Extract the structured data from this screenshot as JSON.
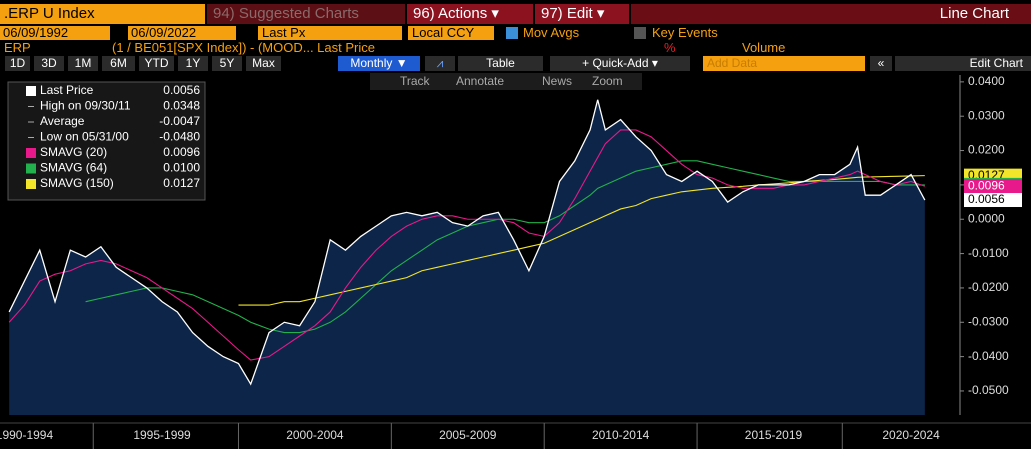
{
  "header": {
    "security": ".ERP U Index",
    "suggested": "94) Suggested Charts",
    "actions": "96) Actions ▾",
    "edit": "97) Edit ▾",
    "view": "Line Chart"
  },
  "controls": {
    "start_date": "06/09/1992",
    "end_date": "06/09/2022",
    "price_field": "Last Px",
    "currency": "Local CCY",
    "mov_avgs": "Mov Avgs",
    "key_events": "Key Events"
  },
  "formula": {
    "ticker": "ERP",
    "expression": "(1 / BE051[SPX Index]) - (MOOD... Last Price",
    "unit": "%",
    "volume": "Volume"
  },
  "periods": [
    "1D",
    "3D",
    "1M",
    "6M",
    "YTD",
    "1Y",
    "5Y",
    "Max"
  ],
  "frequency": "Monthly ▼",
  "table": "Table",
  "quick_add": "+ Quick-Add ▾",
  "add_data": "Add Data",
  "edit_chart": "Edit Chart",
  "tools": [
    "Track",
    "Annotate",
    "News",
    "Zoom"
  ],
  "chart_data": {
    "type": "line",
    "x": [
      1992.5,
      1993,
      1993.5,
      1994,
      1994.5,
      1995,
      1995.5,
      1996,
      1996.5,
      1997,
      1997.5,
      1998,
      1998.5,
      1999,
      1999.5,
      2000,
      2000.4,
      2001,
      2001.5,
      2002,
      2002.5,
      2003,
      2003.5,
      2004,
      2004.5,
      2005,
      2005.5,
      2006,
      2006.5,
      2007,
      2007.5,
      2008,
      2008.5,
      2009,
      2009.5,
      2010,
      2010.5,
      2011,
      2011.5,
      2011.75,
      2012,
      2012.5,
      2013,
      2013.5,
      2014,
      2014.5,
      2015,
      2015.5,
      2016,
      2016.5,
      2017,
      2017.5,
      2018,
      2018.5,
      2019,
      2019.5,
      2020,
      2020.25,
      2020.5,
      2021,
      2021.5,
      2022,
      2022.45
    ],
    "series": [
      {
        "name": "Last Price",
        "color": "#ffffff",
        "legend_value": "0.0056",
        "area_color": "#0c2548",
        "values": [
          -0.027,
          -0.018,
          -0.009,
          -0.024,
          -0.009,
          -0.011,
          -0.008,
          -0.014,
          -0.017,
          -0.02,
          -0.024,
          -0.027,
          -0.033,
          -0.037,
          -0.04,
          -0.042,
          -0.048,
          -0.033,
          -0.03,
          -0.031,
          -0.024,
          -0.006,
          -0.009,
          -0.005,
          -0.002,
          0.001,
          0.002,
          0.001,
          0.002,
          -0.001,
          -0.002,
          0.001,
          0.002,
          -0.006,
          -0.015,
          -0.005,
          0.011,
          0.017,
          0.026,
          0.0348,
          0.026,
          0.029,
          0.024,
          0.02,
          0.013,
          0.011,
          0.014,
          0.011,
          0.005,
          0.008,
          0.01,
          0.01,
          0.01,
          0.011,
          0.013,
          0.013,
          0.016,
          0.021,
          0.007,
          0.007,
          0.01,
          0.013,
          0.0056
        ]
      },
      {
        "name": "SMAVG (20)",
        "color": "#e8198b",
        "legend_value": "0.0096",
        "values": [
          -0.03,
          -0.025,
          -0.018,
          -0.016,
          -0.015,
          -0.013,
          -0.012,
          -0.013,
          -0.015,
          -0.017,
          -0.02,
          -0.023,
          -0.026,
          -0.03,
          -0.034,
          -0.038,
          -0.041,
          -0.04,
          -0.037,
          -0.034,
          -0.031,
          -0.027,
          -0.02,
          -0.014,
          -0.009,
          -0.005,
          -0.002,
          0.0,
          0.001,
          0.001,
          0.0,
          0.0,
          0.0,
          -0.001,
          -0.004,
          -0.005,
          -0.001,
          0.006,
          0.014,
          0.018,
          0.022,
          0.026,
          0.026,
          0.024,
          0.02,
          0.016,
          0.013,
          0.012,
          0.01,
          0.009,
          0.009,
          0.009,
          0.01,
          0.01,
          0.011,
          0.012,
          0.013,
          0.014,
          0.013,
          0.011,
          0.01,
          0.011,
          0.0096
        ]
      },
      {
        "name": "SMAVG (64)",
        "color": "#22b14c",
        "legend_value": "0.0100",
        "values": [
          null,
          null,
          null,
          null,
          null,
          -0.024,
          -0.023,
          -0.022,
          -0.021,
          -0.02,
          -0.02,
          -0.021,
          -0.022,
          -0.024,
          -0.026,
          -0.028,
          -0.03,
          -0.032,
          -0.033,
          -0.033,
          -0.032,
          -0.03,
          -0.027,
          -0.023,
          -0.019,
          -0.015,
          -0.012,
          -0.009,
          -0.006,
          -0.004,
          -0.002,
          -0.001,
          0.0,
          0.0,
          -0.001,
          -0.001,
          0.001,
          0.004,
          0.007,
          0.009,
          0.01,
          0.012,
          0.014,
          0.015,
          0.016,
          0.017,
          0.017,
          0.016,
          0.015,
          0.014,
          0.013,
          0.012,
          0.011,
          0.011,
          0.011,
          0.011,
          0.011,
          0.011,
          0.011,
          0.011,
          0.01,
          0.01,
          0.01
        ]
      },
      {
        "name": "SMAVG (150)",
        "color": "#f2e52a",
        "legend_value": "0.0127",
        "values": [
          null,
          null,
          null,
          null,
          null,
          null,
          null,
          null,
          null,
          null,
          null,
          null,
          null,
          null,
          null,
          -0.025,
          -0.025,
          -0.025,
          -0.024,
          -0.024,
          -0.023,
          -0.022,
          -0.021,
          -0.02,
          -0.019,
          -0.018,
          -0.017,
          -0.015,
          -0.014,
          -0.013,
          -0.012,
          -0.011,
          -0.01,
          -0.009,
          -0.008,
          -0.007,
          -0.005,
          -0.003,
          -0.001,
          0.0,
          0.001,
          0.003,
          0.004,
          0.006,
          0.007,
          0.008,
          0.0085,
          0.009,
          0.0093,
          0.0096,
          0.01,
          0.0103,
          0.0106,
          0.011,
          0.0113,
          0.0116,
          0.012,
          0.0122,
          0.0123,
          0.0124,
          0.0125,
          0.0126,
          0.0127
        ]
      }
    ],
    "legend_stats": [
      {
        "label": "High on 09/30/11",
        "value": "0.0348"
      },
      {
        "label": "Average",
        "value": "-0.0047"
      },
      {
        "label": "Low on 05/31/00",
        "value": "-0.0480"
      }
    ],
    "xlim": [
      1992.2,
      2023.6
    ],
    "xticks": [
      {
        "value": 1993,
        "label": "1990-1994"
      },
      {
        "value": 1997.5,
        "label": "1995-1999"
      },
      {
        "value": 2002.5,
        "label": "2000-2004"
      },
      {
        "value": 2007.5,
        "label": "2005-2009"
      },
      {
        "value": 2012.5,
        "label": "2010-2014"
      },
      {
        "value": 2017.5,
        "label": "2015-2019"
      },
      {
        "value": 2022,
        "label": "2020-2024"
      }
    ],
    "ylim": [
      -0.057,
      0.042
    ],
    "yticks": [
      {
        "value": 0.04,
        "label": "0.0400"
      },
      {
        "value": 0.03,
        "label": "0.0300"
      },
      {
        "value": 0.02,
        "label": "0.0200"
      },
      {
        "value": 0.01,
        "label": "0.0100"
      },
      {
        "value": 0,
        "label": "0.0000"
      },
      {
        "value": -0.01,
        "label": "-0.0100"
      },
      {
        "value": -0.02,
        "label": "-0.0200"
      },
      {
        "value": -0.03,
        "label": "-0.0300"
      },
      {
        "value": -0.04,
        "label": "-0.0400"
      },
      {
        "value": -0.05,
        "label": "-0.0500"
      }
    ]
  }
}
